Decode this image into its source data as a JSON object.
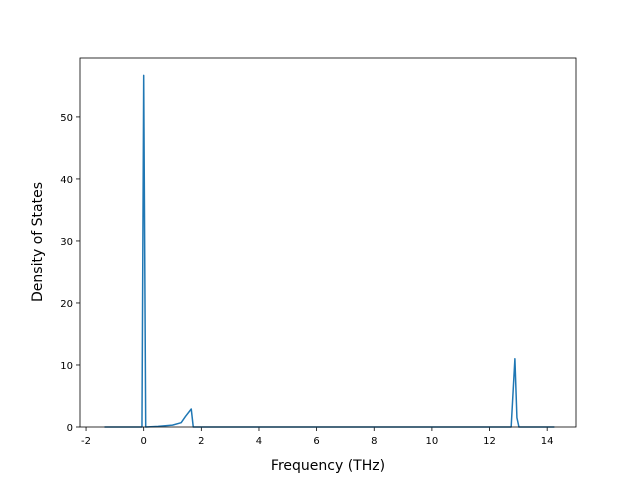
{
  "chart_data": {
    "type": "line",
    "xlabel": "Frequency (THz)",
    "ylabel": "Density of States",
    "x": [
      -1.36,
      -0.06,
      0.0,
      0.07,
      0.5,
      1.0,
      1.3,
      1.45,
      1.65,
      1.72,
      12.75,
      12.88,
      12.95,
      13.02,
      14.25
    ],
    "series": [
      {
        "color": "#1f77b4",
        "values": [
          0,
          0,
          56.7,
          0,
          0.1,
          0.3,
          0.7,
          1.7,
          2.9,
          0,
          0,
          11.0,
          1.5,
          0,
          0
        ]
      }
    ],
    "xlim": [
      -2.21,
      15.0
    ],
    "xticks": [
      -2,
      0,
      2,
      4,
      6,
      8,
      10,
      12,
      14
    ],
    "ylim": [
      0,
      59.5
    ],
    "yticks": [
      0,
      10,
      20,
      30,
      40,
      50
    ]
  }
}
